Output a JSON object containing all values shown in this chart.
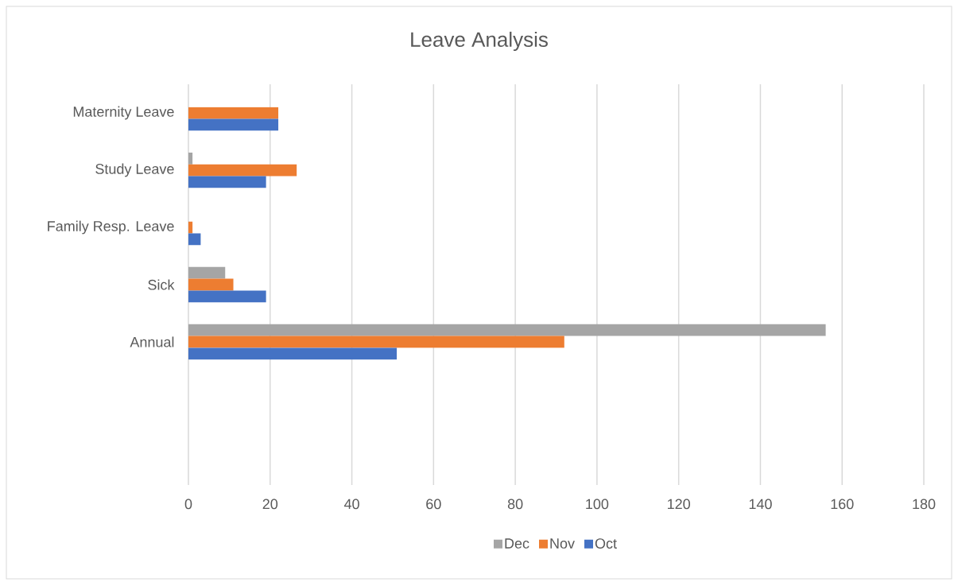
{
  "chart_data": {
    "type": "bar",
    "orientation": "horizontal",
    "title": "Leave Analysis",
    "categories": [
      "Maternity Leave",
      "Study Leave",
      "Family Resp. Leave",
      "Sick",
      "Annual",
      null,
      null
    ],
    "series": [
      {
        "name": "Dec",
        "color": "#a5a5a5",
        "values": [
          null,
          1,
          null,
          9,
          156,
          null,
          null
        ]
      },
      {
        "name": "Nov",
        "color": "#ed7d31",
        "values": [
          22,
          26.5,
          1,
          11,
          92,
          null,
          null
        ]
      },
      {
        "name": "Oct",
        "color": "#4472c4",
        "values": [
          22,
          19,
          3,
          19,
          51,
          null,
          null
        ]
      }
    ],
    "xlim": [
      0,
      180
    ],
    "xticks": [
      0,
      20,
      40,
      60,
      80,
      100,
      120,
      140,
      160,
      180
    ],
    "grid": "x",
    "legend": "bottom"
  }
}
